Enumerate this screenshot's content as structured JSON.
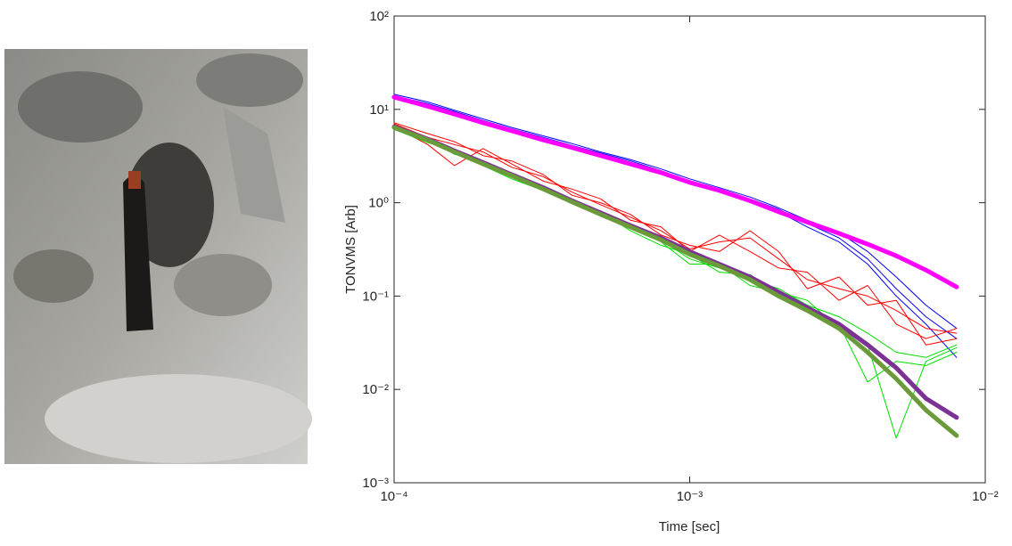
{
  "chart_data": {
    "type": "line",
    "xlabel": "Time [sec]",
    "ylabel": "TONVMS [Arb]",
    "xscale": "log",
    "yscale": "log",
    "xlim": [
      0.0001,
      0.01
    ],
    "ylim": [
      0.001,
      100
    ],
    "xticks": [
      {
        "value": 0.0001,
        "label": "10⁻⁴"
      },
      {
        "value": 0.001,
        "label": "10⁻³"
      },
      {
        "value": 0.01,
        "label": "10⁻²"
      }
    ],
    "yticks": [
      {
        "value": 0.001,
        "label": "10⁻³"
      },
      {
        "value": 0.01,
        "label": "10⁻²"
      },
      {
        "value": 0.1,
        "label": "10⁻¹"
      },
      {
        "value": 1,
        "label": "10⁰"
      },
      {
        "value": 10,
        "label": "10¹"
      },
      {
        "value": 100,
        "label": "10²"
      }
    ],
    "x": [
      0.0001,
      0.00013,
      0.00016,
      0.0002,
      0.00025,
      0.00032,
      0.0004,
      0.0005,
      0.00063,
      0.0008,
      0.001,
      0.00126,
      0.0016,
      0.002,
      0.0025,
      0.0032,
      0.004,
      0.005,
      0.0063,
      0.008
    ],
    "series": [
      {
        "color": "#0000ff",
        "linewidth": 1,
        "values": [
          14,
          11.5,
          9.5,
          7.6,
          6.2,
          5,
          4.1,
          3.4,
          2.8,
          2.2,
          1.7,
          1.4,
          1.1,
          0.85,
          0.6,
          0.42,
          0.25,
          0.12,
          0.06,
          0.035
        ]
      },
      {
        "color": "#0000ff",
        "linewidth": 1,
        "values": [
          14.5,
          12,
          9.8,
          7.9,
          6.4,
          5.2,
          4.3,
          3.5,
          2.9,
          2.3,
          1.8,
          1.45,
          1.15,
          0.88,
          0.65,
          0.48,
          0.3,
          0.16,
          0.08,
          0.045
        ]
      },
      {
        "color": "#0000ff",
        "linewidth": 1,
        "values": [
          13.8,
          11.2,
          9.3,
          7.5,
          6.1,
          4.9,
          4,
          3.3,
          2.7,
          2.1,
          1.65,
          1.35,
          1.05,
          0.8,
          0.55,
          0.38,
          0.22,
          0.1,
          0.05,
          0.022
        ]
      },
      {
        "color": "#ff00ff",
        "linewidth": 5,
        "values": [
          13.5,
          10.8,
          8.9,
          7.2,
          5.9,
          4.7,
          3.9,
          3.2,
          2.6,
          2.1,
          1.65,
          1.35,
          1.05,
          0.8,
          0.62,
          0.47,
          0.36,
          0.27,
          0.19,
          0.125
        ]
      },
      {
        "color": "#ff0000",
        "linewidth": 1,
        "values": [
          7,
          5,
          4.2,
          3.5,
          2.4,
          1.9,
          1.3,
          0.95,
          0.7,
          0.5,
          0.32,
          0.38,
          0.42,
          0.25,
          0.15,
          0.12,
          0.1,
          0.07,
          0.045,
          0.04
        ]
      },
      {
        "color": "#ff0000",
        "linewidth": 1,
        "values": [
          6.5,
          4.2,
          2.5,
          3.8,
          2.6,
          1.7,
          1.4,
          1.1,
          0.65,
          0.55,
          0.3,
          0.45,
          0.3,
          0.2,
          0.18,
          0.09,
          0.13,
          0.05,
          0.035,
          0.045
        ]
      },
      {
        "color": "#ff0000",
        "linewidth": 1,
        "values": [
          7.2,
          5.5,
          4.5,
          3.2,
          2.8,
          2,
          1.2,
          1,
          0.75,
          0.45,
          0.35,
          0.3,
          0.5,
          0.3,
          0.12,
          0.16,
          0.08,
          0.09,
          0.03,
          0.035
        ]
      },
      {
        "color": "#00dd00",
        "linewidth": 1,
        "values": [
          6.3,
          4.6,
          3.5,
          2.6,
          1.9,
          1.4,
          1.05,
          0.75,
          0.55,
          0.4,
          0.25,
          0.2,
          0.15,
          0.12,
          0.08,
          0.06,
          0.04,
          0.025,
          0.022,
          0.03
        ]
      },
      {
        "color": "#00dd00",
        "linewidth": 1,
        "values": [
          6.6,
          4.9,
          3.3,
          2.8,
          2,
          1.5,
          1.1,
          0.8,
          0.5,
          0.35,
          0.28,
          0.18,
          0.17,
          0.1,
          0.07,
          0.05,
          0.012,
          0.02,
          0.018,
          0.025
        ]
      },
      {
        "color": "#00dd00",
        "linewidth": 1,
        "values": [
          6.1,
          4.4,
          3.6,
          2.5,
          1.8,
          1.35,
          1,
          0.72,
          0.58,
          0.38,
          0.22,
          0.22,
          0.13,
          0.11,
          0.09,
          0.045,
          0.03,
          0.003,
          0.02,
          0.028
        ]
      },
      {
        "color": "#7b3294",
        "linewidth": 5,
        "values": [
          6.5,
          4.8,
          3.6,
          2.7,
          2,
          1.45,
          1.05,
          0.78,
          0.57,
          0.42,
          0.3,
          0.22,
          0.16,
          0.11,
          0.075,
          0.05,
          0.03,
          0.017,
          0.008,
          0.005
        ]
      },
      {
        "color": "#6b9a3a",
        "linewidth": 5,
        "values": [
          6.4,
          4.7,
          3.5,
          2.6,
          1.95,
          1.4,
          1.02,
          0.75,
          0.55,
          0.4,
          0.28,
          0.21,
          0.15,
          0.1,
          0.07,
          0.045,
          0.025,
          0.013,
          0.006,
          0.0032
        ]
      }
    ]
  }
}
